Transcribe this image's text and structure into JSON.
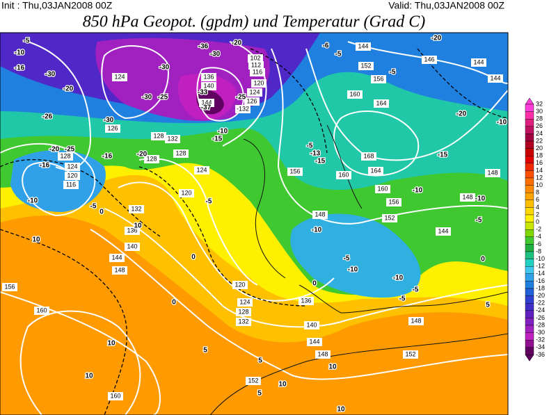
{
  "header": {
    "init": "Init : Thu,03JAN2008 00Z",
    "valid": "Valid: Thu,03JAN2008 00Z",
    "title": "850 hPa Geopot. (gpdm) und Temperatur (Grad C)"
  },
  "colorbar": {
    "levels": [
      32,
      30,
      28,
      26,
      24,
      22,
      20,
      18,
      16,
      14,
      12,
      10,
      8,
      6,
      4,
      2,
      0,
      -2,
      -4,
      -6,
      -8,
      -10,
      -12,
      -14,
      -16,
      -18,
      -20,
      -22,
      -24,
      -26,
      -28,
      -30,
      -32,
      -34,
      -36
    ],
    "colors": [
      "#ff3fd9",
      "#ff2fa8",
      "#e02080",
      "#c01060",
      "#a00040",
      "#b00020",
      "#c80000",
      "#e00000",
      "#f02800",
      "#ff5000",
      "#ff7000",
      "#ff8c00",
      "#ffa500",
      "#ffbf00",
      "#ffd800",
      "#fff000",
      "#c8e600",
      "#80d800",
      "#40c830",
      "#20b040",
      "#20c080",
      "#20d0c0",
      "#40c8f0",
      "#30a0e8",
      "#2080e0",
      "#2060d8",
      "#3040d0",
      "#4030c8",
      "#6020c0",
      "#8020c0",
      "#a020c0",
      "#c020c0",
      "#901090",
      "#600060"
    ]
  },
  "map": {
    "geopotential_labels": [
      124,
      126,
      128,
      132,
      128,
      128,
      124,
      120,
      128,
      124,
      120,
      116,
      132,
      136,
      140,
      144,
      148,
      156,
      160,
      160,
      152,
      148,
      144,
      140,
      132,
      128,
      124,
      120,
      136,
      148,
      152,
      148,
      152,
      156,
      160,
      164,
      168,
      156,
      160,
      164,
      160,
      156,
      152,
      144,
      146,
      144,
      144,
      148,
      148,
      144,
      136,
      140,
      144,
      102,
      112,
      116,
      120,
      124,
      126,
      -132
    ],
    "temperature_labels": [
      -10,
      -16,
      -30,
      -20,
      -26,
      -30,
      -20,
      -25,
      -16,
      -16,
      -20,
      -10,
      -5,
      0,
      10,
      10,
      0,
      0,
      -5,
      10,
      10,
      5,
      10,
      5,
      10,
      10,
      5,
      0,
      -5,
      -10,
      -10,
      -15,
      -13,
      -5,
      -10,
      -5,
      -5,
      -10,
      -15,
      -20,
      -10,
      -5,
      0,
      5,
      -25,
      -30,
      -30,
      -36,
      -30,
      -33,
      -37,
      -25,
      -15,
      -10,
      -5,
      -6,
      -5,
      -20,
      -10,
      -5,
      -20
    ]
  }
}
